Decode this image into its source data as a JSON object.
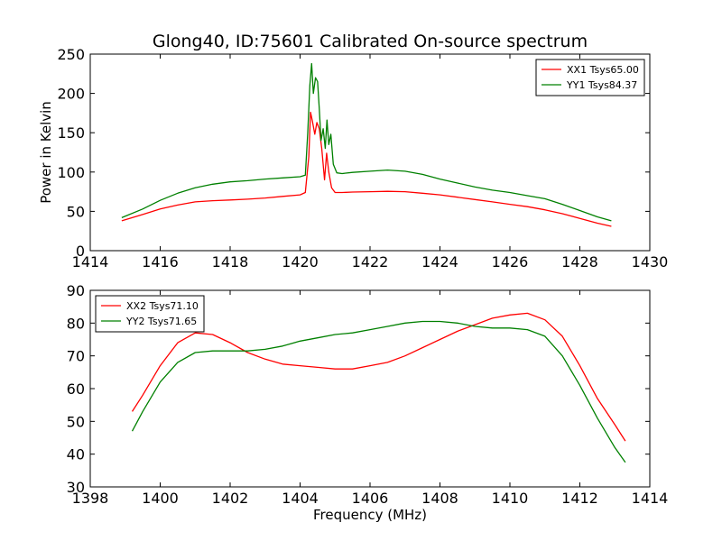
{
  "chart_data": [
    {
      "type": "line",
      "title": "Glong40, ID:75601 Calibrated On-source spectrum",
      "xlabel": "",
      "ylabel": "Power in Kelvin",
      "xlim": [
        1414,
        1430
      ],
      "ylim": [
        0,
        250
      ],
      "xticks": [
        "1414",
        "1416",
        "1418",
        "1420",
        "1422",
        "1424",
        "1426",
        "1428",
        "1430"
      ],
      "yticks": [
        "0",
        "50",
        "100",
        "150",
        "200",
        "250"
      ],
      "grid": false,
      "legend": "top-right",
      "series": [
        {
          "name": "XX1 Tsys65.00",
          "color": "#ff0000",
          "x": [
            1414.9,
            1415.5,
            1416,
            1416.5,
            1417,
            1417.5,
            1418,
            1418.5,
            1419,
            1419.5,
            1420,
            1420.15,
            1420.25,
            1420.3,
            1420.35,
            1420.42,
            1420.48,
            1420.55,
            1420.62,
            1420.7,
            1420.76,
            1420.82,
            1420.9,
            1421.0,
            1421.2,
            1421.5,
            1422,
            1422.5,
            1423,
            1423.5,
            1424,
            1424.5,
            1425,
            1425.5,
            1426,
            1426.5,
            1427,
            1427.5,
            1428,
            1428.5,
            1428.9
          ],
          "y": [
            38,
            46,
            53,
            58,
            62,
            63.5,
            64.5,
            65.5,
            67,
            69,
            71,
            74,
            120,
            176,
            165,
            148,
            163,
            155,
            130,
            90,
            124,
            100,
            80,
            74,
            74,
            74.5,
            75,
            75.5,
            75,
            73,
            71,
            68,
            65,
            62,
            59,
            56,
            52,
            47,
            41,
            35,
            31
          ]
        },
        {
          "name": "YY1 Tsys84.37",
          "color": "#008000",
          "x": [
            1414.9,
            1415.5,
            1416,
            1416.5,
            1417,
            1417.5,
            1418,
            1418.5,
            1419,
            1419.5,
            1420,
            1420.15,
            1420.22,
            1420.28,
            1420.33,
            1420.38,
            1420.44,
            1420.5,
            1420.55,
            1420.6,
            1420.66,
            1420.72,
            1420.77,
            1420.82,
            1420.88,
            1420.95,
            1421.05,
            1421.2,
            1421.5,
            1422,
            1422.5,
            1423,
            1423.5,
            1424,
            1424.5,
            1425,
            1425.5,
            1426,
            1426.5,
            1427,
            1427.5,
            1428,
            1428.5,
            1428.9
          ],
          "y": [
            42,
            53,
            64,
            73,
            80,
            84.5,
            87.5,
            89,
            91,
            92.5,
            94,
            96,
            150,
            210,
            238,
            200,
            220,
            215,
            180,
            140,
            155,
            130,
            166,
            135,
            148,
            110,
            99,
            98,
            99.5,
            101,
            102.5,
            101,
            97,
            91,
            86,
            81,
            77,
            74,
            70,
            66,
            59,
            51,
            43,
            38
          ]
        }
      ]
    },
    {
      "type": "line",
      "title": "",
      "xlabel": "Frequency (MHz)",
      "ylabel": "",
      "xlim": [
        1398,
        1414
      ],
      "ylim": [
        30,
        90
      ],
      "xticks": [
        "1398",
        "1400",
        "1402",
        "1404",
        "1406",
        "1408",
        "1410",
        "1412",
        "1414"
      ],
      "yticks": [
        "30",
        "40",
        "50",
        "60",
        "70",
        "80",
        "90"
      ],
      "grid": false,
      "legend": "top-left",
      "series": [
        {
          "name": "XX2 Tsys71.10",
          "color": "#ff0000",
          "x": [
            1399.2,
            1399.5,
            1400,
            1400.5,
            1401,
            1401.5,
            1402,
            1402.5,
            1403,
            1403.5,
            1404,
            1404.5,
            1405,
            1405.5,
            1406,
            1406.5,
            1407,
            1407.5,
            1408,
            1408.5,
            1409,
            1409.5,
            1410,
            1410.5,
            1411,
            1411.5,
            1412,
            1412.5,
            1413,
            1413.3
          ],
          "y": [
            53,
            58,
            67,
            74,
            77,
            76.5,
            74,
            71,
            69,
            67.5,
            67,
            66.5,
            66,
            66,
            67,
            68,
            70,
            72.5,
            75,
            77.5,
            79.5,
            81.5,
            82.5,
            83,
            81,
            76,
            67,
            57,
            49,
            44
          ]
        },
        {
          "name": "YY2 Tsys71.65",
          "color": "#008000",
          "x": [
            1399.2,
            1399.5,
            1400,
            1400.5,
            1401,
            1401.5,
            1402,
            1402.5,
            1403,
            1403.5,
            1404,
            1404.5,
            1405,
            1405.5,
            1406,
            1406.5,
            1407,
            1407.5,
            1408,
            1408.5,
            1409,
            1409.5,
            1410,
            1410.5,
            1411,
            1411.5,
            1412,
            1412.5,
            1413,
            1413.3
          ],
          "y": [
            47,
            53,
            62,
            68,
            71,
            71.5,
            71.5,
            71.5,
            72,
            73,
            74.5,
            75.5,
            76.5,
            77,
            78,
            79,
            80,
            80.5,
            80.5,
            80,
            79,
            78.5,
            78.5,
            78,
            76,
            70,
            61,
            51,
            42,
            37.5
          ]
        }
      ]
    }
  ]
}
